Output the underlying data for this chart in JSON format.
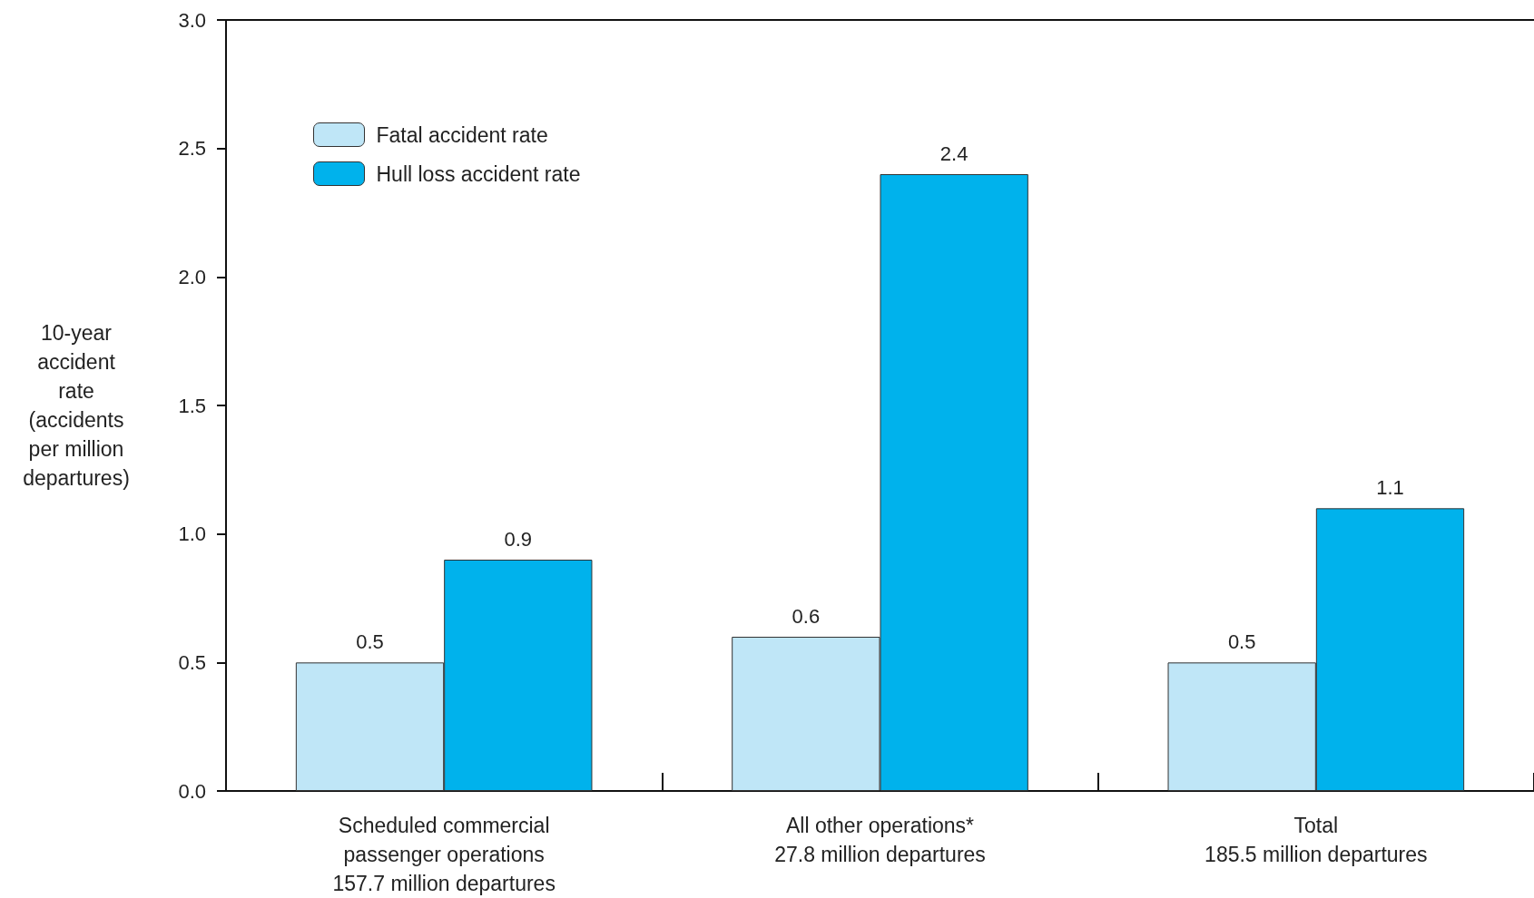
{
  "chart_data": {
    "type": "bar",
    "ylabel": "10-year\naccident\nrate\n(accidents\nper million\ndepartures)",
    "categories": [
      "Scheduled commercial\npassenger operations\n157.7 million departures",
      "All other operations*\n27.8 million departures",
      "Total\n185.5 million departures"
    ],
    "series": [
      {
        "name": "Fatal accident rate",
        "color": "#bfe6f7",
        "values": [
          0.5,
          0.6,
          0.5
        ]
      },
      {
        "name": "Hull loss accident rate",
        "color": "#00b2ec",
        "values": [
          0.9,
          2.4,
          1.1
        ]
      }
    ],
    "ylim": [
      0,
      3
    ],
    "yticks": [
      {
        "value": 0,
        "label": "0.0"
      },
      {
        "value": 0.5,
        "label": "0.5"
      },
      {
        "value": 1,
        "label": "1.0"
      },
      {
        "value": 1.5,
        "label": "1.5"
      },
      {
        "value": 2,
        "label": "2.0"
      },
      {
        "value": 2.5,
        "label": "2.5"
      },
      {
        "value": 3,
        "label": "3.0"
      }
    ],
    "data_labels": true,
    "grid": false,
    "legend": "top left"
  }
}
